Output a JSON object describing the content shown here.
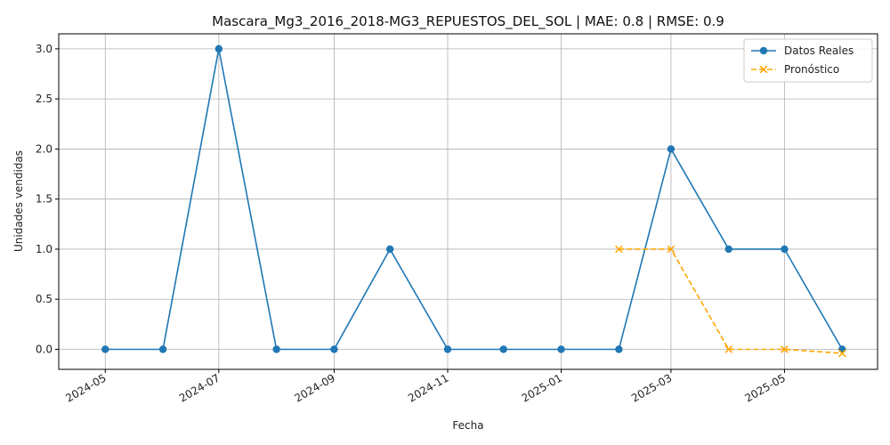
{
  "chart_data": {
    "type": "line",
    "title": "Mascara_Mg3_2016_2018-MG3_REPUESTOS_DEL_SOL | MAE: 0.8 | RMSE: 0.9",
    "xlabel": "Fecha",
    "ylabel": "Unidades vendidas",
    "x_ticks": [
      "2024-05",
      "2024-07",
      "2024-09",
      "2024-11",
      "2025-01",
      "2025-03",
      "2025-05"
    ],
    "y_ticks": [
      "0.0",
      "0.5",
      "1.0",
      "1.5",
      "2.0",
      "2.5",
      "3.0"
    ],
    "ylim": [
      -0.2,
      3.15
    ],
    "xlim": [
      "2024-04-06",
      "2025-06-20"
    ],
    "grid": true,
    "legend_position": "top-right",
    "series": [
      {
        "name": "Datos Reales",
        "color": "#1f77b4",
        "line_style": "solid",
        "marker": "circle",
        "x": [
          "2024-05-01",
          "2024-06-01",
          "2024-07-01",
          "2024-08-01",
          "2024-09-01",
          "2024-10-01",
          "2024-11-01",
          "2024-12-01",
          "2025-01-01",
          "2025-02-01",
          "2025-03-01",
          "2025-04-01",
          "2025-05-01",
          "2025-06-01"
        ],
        "values": [
          0,
          0,
          3,
          0,
          0,
          1,
          0,
          0,
          0,
          0,
          2,
          1,
          1,
          0
        ]
      },
      {
        "name": "Pronóstico",
        "color": "#ffa500",
        "line_style": "dashed",
        "marker": "x",
        "x": [
          "2025-02-01",
          "2025-03-01",
          "2025-04-01",
          "2025-05-01",
          "2025-06-01"
        ],
        "values": [
          1.0,
          1.0,
          0.0,
          0.0,
          -0.04
        ]
      }
    ]
  }
}
